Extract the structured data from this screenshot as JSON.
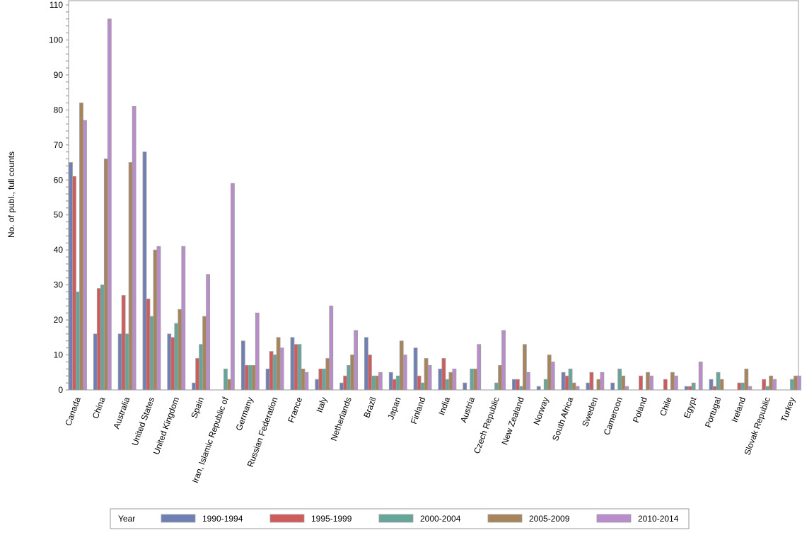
{
  "chart_data": {
    "type": "bar",
    "title": "",
    "xlabel": "",
    "ylabel": "No. of publ., full counts",
    "ylim": [
      0,
      110
    ],
    "yticks": [
      0,
      10,
      20,
      30,
      40,
      50,
      60,
      70,
      80,
      90,
      100,
      110
    ],
    "grid": false,
    "legend_position": "bottom",
    "legend_title": "Year",
    "categories": [
      "Canada",
      "China",
      "Australia",
      "United States",
      "United Kingdom",
      "Spain",
      "Iran, Islamic Republic of",
      "Germany",
      "Russian Federation",
      "France",
      "Italy",
      "Netherlands",
      "Brazil",
      "Japan",
      "Finland",
      "India",
      "Austria",
      "Czech Republic",
      "New Zealand",
      "Norway",
      "South Africa",
      "Sweden",
      "Cameroon",
      "Poland",
      "Chile",
      "Egypt",
      "Portugal",
      "Ireland",
      "Slovak Republic",
      "Turkey"
    ],
    "series": [
      {
        "name": "1990-1994",
        "color": "#6f7fb3",
        "values": [
          65,
          16,
          16,
          68,
          16,
          2,
          0,
          14,
          6,
          15,
          3,
          2,
          15,
          5,
          12,
          6,
          2,
          0,
          3,
          1,
          5,
          2,
          2,
          0,
          0,
          1,
          3,
          0,
          0,
          0
        ]
      },
      {
        "name": "1995-1999",
        "color": "#d05b5b",
        "values": [
          61,
          29,
          27,
          26,
          15,
          9,
          0,
          7,
          11,
          13,
          6,
          4,
          10,
          3,
          4,
          9,
          0,
          0,
          3,
          0,
          4,
          5,
          0,
          4,
          3,
          1,
          1,
          2,
          3,
          0
        ]
      },
      {
        "name": "2000-2004",
        "color": "#66a59a",
        "values": [
          28,
          30,
          16,
          21,
          19,
          13,
          6,
          7,
          10,
          13,
          6,
          7,
          4,
          4,
          2,
          3,
          6,
          2,
          1,
          3,
          6,
          0,
          6,
          0,
          0,
          2,
          5,
          2,
          1,
          3
        ]
      },
      {
        "name": "2005-2009",
        "color": "#a8845a",
        "values": [
          82,
          66,
          65,
          40,
          23,
          21,
          3,
          7,
          15,
          6,
          9,
          10,
          4,
          14,
          9,
          5,
          6,
          7,
          13,
          10,
          2,
          3,
          4,
          5,
          5,
          0,
          3,
          6,
          4,
          4
        ]
      },
      {
        "name": "2010-2014",
        "color": "#b98ccb",
        "values": [
          77,
          106,
          81,
          41,
          41,
          33,
          59,
          22,
          12,
          5,
          24,
          17,
          5,
          10,
          7,
          6,
          13,
          17,
          5,
          8,
          1,
          5,
          1,
          4,
          4,
          8,
          0,
          1,
          3,
          4
        ]
      }
    ]
  }
}
